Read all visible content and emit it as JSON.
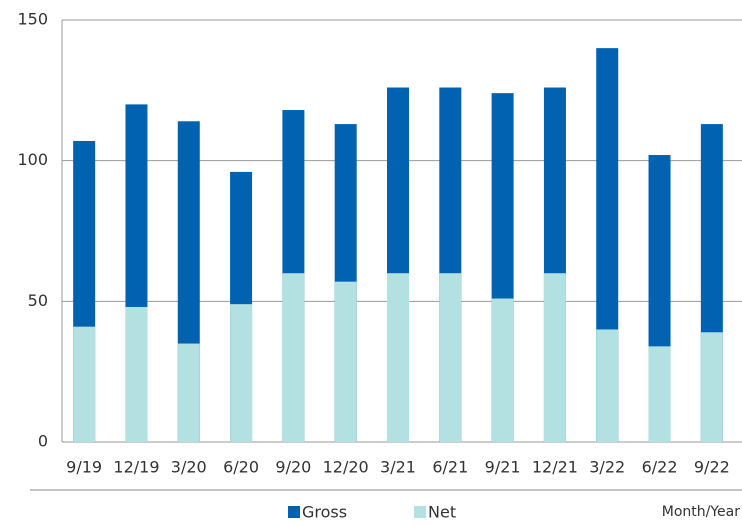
{
  "chart_data": {
    "type": "bar",
    "x_label": "Month/Year",
    "categories": [
      "9/19",
      "12/19",
      "3/20",
      "6/20",
      "9/20",
      "12/20",
      "3/21",
      "6/21",
      "9/21",
      "12/21",
      "3/22",
      "6/22",
      "9/22"
    ],
    "series": [
      {
        "name": "Gross",
        "color": "#0062b0",
        "values": [
          107,
          120,
          114,
          96,
          118,
          113,
          126,
          126,
          124,
          126,
          140,
          102,
          113
        ]
      },
      {
        "name": "Net",
        "color": "#b3e0e0",
        "values": [
          41,
          48,
          35,
          49,
          60,
          57,
          60,
          60,
          51,
          60,
          40,
          34,
          39
        ]
      }
    ],
    "ylim": [
      0,
      150
    ],
    "yticks": [
      0,
      50,
      100,
      150
    ],
    "grid": true
  }
}
